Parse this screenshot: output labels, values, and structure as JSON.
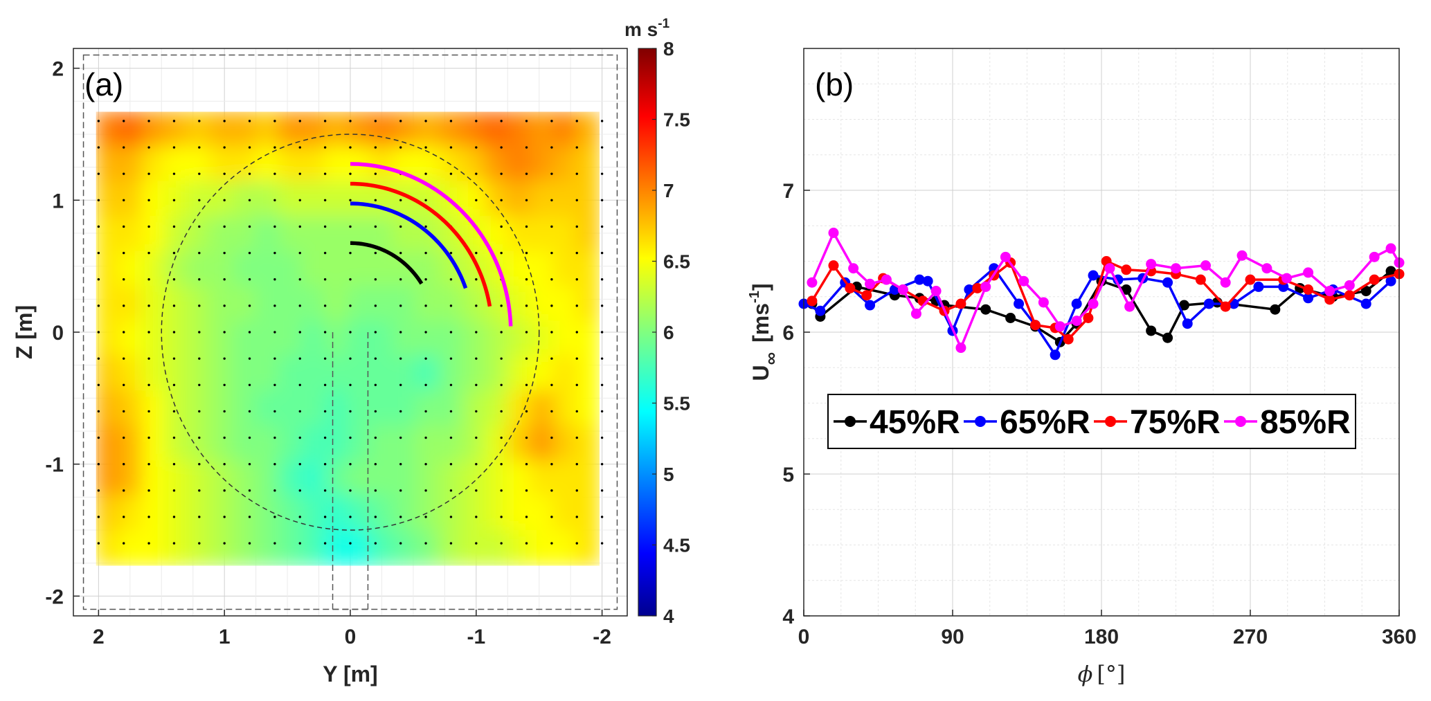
{
  "chart_data": [
    {
      "type": "heatmap",
      "panel_label": "(a)",
      "xlabel": "Y [m]",
      "ylabel": "Z [m]",
      "xlim": [
        2.2,
        -2.2
      ],
      "ylim": [
        -2.15,
        2.15
      ],
      "x_ticks": [
        "2",
        "1",
        "0",
        "-1",
        "-2"
      ],
      "y_ticks": [
        "2",
        "1",
        "0",
        "-1",
        "-2"
      ],
      "grid": true,
      "colorbar": {
        "unit": "m s",
        "unit_exp": "-1",
        "range": [
          4,
          8
        ],
        "ticks": [
          "8",
          "7.5",
          "7",
          "6.5",
          "6",
          "5.5",
          "5",
          "4.5",
          "4"
        ],
        "colormap": "jet"
      },
      "field_extent": {
        "y": [
          2.02,
          -1.98
        ],
        "z": [
          -1.77,
          1.67
        ]
      },
      "field_values": [
        [
          7.0,
          7.1,
          6.9,
          6.8,
          6.7,
          6.8,
          6.8,
          6.7,
          6.9,
          6.9,
          6.8,
          6.9,
          7.0,
          6.9,
          6.8,
          6.9,
          7.0,
          7.1,
          7.0,
          6.9,
          7.0,
          6.8
        ],
        [
          6.8,
          6.8,
          6.6,
          6.5,
          6.5,
          6.6,
          6.6,
          6.5,
          6.6,
          6.6,
          6.5,
          6.5,
          6.6,
          6.5,
          6.5,
          6.6,
          6.7,
          6.9,
          7.0,
          6.9,
          6.8,
          6.7
        ],
        [
          6.7,
          6.7,
          6.5,
          6.4,
          6.3,
          6.3,
          6.2,
          6.2,
          6.3,
          6.3,
          6.3,
          6.3,
          6.3,
          6.3,
          6.3,
          6.4,
          6.5,
          6.7,
          6.8,
          6.7,
          6.7,
          6.7
        ],
        [
          6.6,
          6.6,
          6.5,
          6.3,
          6.2,
          6.1,
          6.1,
          6.0,
          6.1,
          6.1,
          6.1,
          6.1,
          6.1,
          6.2,
          6.2,
          6.3,
          6.4,
          6.5,
          6.6,
          6.6,
          6.6,
          6.7
        ],
        [
          6.6,
          6.5,
          6.4,
          6.2,
          6.1,
          6.1,
          6.0,
          6.0,
          6.0,
          6.1,
          6.1,
          6.1,
          6.1,
          6.1,
          6.1,
          6.2,
          6.3,
          6.4,
          6.5,
          6.5,
          6.6,
          6.6
        ],
        [
          6.6,
          6.6,
          6.4,
          6.3,
          6.2,
          6.1,
          6.1,
          6.0,
          6.0,
          6.0,
          6.1,
          6.0,
          6.0,
          6.0,
          6.1,
          6.1,
          6.2,
          6.3,
          6.4,
          6.5,
          6.5,
          6.6
        ],
        [
          6.6,
          6.5,
          6.4,
          6.3,
          6.2,
          6.1,
          6.0,
          6.0,
          6.0,
          5.9,
          6.0,
          5.9,
          5.9,
          6.0,
          6.0,
          6.0,
          6.1,
          6.2,
          6.3,
          6.4,
          6.5,
          6.5
        ],
        [
          6.7,
          6.6,
          6.4,
          6.3,
          6.2,
          6.1,
          6.0,
          6.0,
          5.9,
          5.9,
          5.9,
          5.9,
          5.9,
          5.9,
          5.8,
          6.0,
          6.1,
          6.2,
          6.4,
          6.5,
          6.6,
          6.5
        ],
        [
          6.8,
          6.7,
          6.5,
          6.3,
          6.2,
          6.1,
          6.0,
          5.9,
          5.9,
          5.9,
          5.8,
          5.9,
          5.9,
          5.9,
          6.0,
          6.0,
          6.2,
          6.3,
          6.6,
          6.8,
          6.6,
          6.5
        ],
        [
          6.9,
          6.8,
          6.5,
          6.3,
          6.2,
          6.1,
          6.0,
          6.0,
          5.9,
          5.8,
          5.8,
          5.9,
          6.0,
          6.0,
          6.1,
          6.1,
          6.2,
          6.4,
          6.7,
          6.9,
          6.7,
          6.6
        ],
        [
          6.9,
          6.8,
          6.5,
          6.4,
          6.3,
          6.2,
          6.1,
          6.0,
          5.8,
          5.7,
          5.9,
          6.0,
          6.0,
          6.0,
          6.1,
          6.2,
          6.3,
          6.4,
          6.5,
          6.6,
          6.6,
          6.6
        ],
        [
          6.7,
          6.6,
          6.5,
          6.4,
          6.3,
          6.2,
          6.1,
          6.0,
          5.9,
          5.8,
          5.7,
          5.8,
          5.9,
          6.0,
          6.1,
          6.2,
          6.3,
          6.4,
          6.5,
          6.5,
          6.6,
          6.6
        ],
        [
          6.6,
          6.5,
          6.5,
          6.4,
          6.3,
          6.2,
          6.1,
          6.0,
          5.9,
          5.8,
          5.6,
          5.6,
          5.8,
          5.9,
          6.0,
          6.2,
          6.3,
          6.3,
          6.4,
          6.5,
          6.5,
          6.6
        ]
      ],
      "measurement_circle_radius": 1.5,
      "arcs": [
        {
          "label": "45%R",
          "color": "#000000",
          "radius": 0.675,
          "phi_start_deg": 0,
          "phi_end_deg": 57
        },
        {
          "label": "65%R",
          "color": "#0000ff",
          "radius": 0.975,
          "phi_start_deg": 0,
          "phi_end_deg": 70
        },
        {
          "label": "75%R",
          "color": "#ff0000",
          "radius": 1.125,
          "phi_start_deg": 0,
          "phi_end_deg": 80
        },
        {
          "label": "85%R",
          "color": "#ff00ff",
          "radius": 1.275,
          "phi_start_deg": 0,
          "phi_end_deg": 88
        }
      ]
    },
    {
      "type": "line",
      "panel_label": "(b)",
      "xlabel": "[°]",
      "xlabel_symbol": "ϕ",
      "ylabel": "U",
      "ylabel_sub": "∞",
      "ylabel_unit": "[ms",
      "ylabel_unit_exp": "-1",
      "ylabel_unit_close": "]",
      "xlim": [
        0,
        360
      ],
      "ylim": [
        4,
        8
      ],
      "x_ticks": [
        "0",
        "90",
        "180",
        "270",
        "360"
      ],
      "y_ticks": [
        "4",
        "5",
        "6",
        "7"
      ],
      "grid": true,
      "legend_position": "middle",
      "series": [
        {
          "name": "45%R",
          "color": "#000000",
          "x": [
            5,
            10,
            32,
            55,
            70,
            80,
            85,
            110,
            125,
            140,
            155,
            165,
            180,
            195,
            210,
            220,
            230,
            250,
            285,
            300,
            320,
            340,
            355
          ],
          "y": [
            6.2,
            6.11,
            6.32,
            6.26,
            6.24,
            6.22,
            6.19,
            6.16,
            6.1,
            6.04,
            5.93,
            6.06,
            6.36,
            6.3,
            6.01,
            5.96,
            6.19,
            6.21,
            6.16,
            6.31,
            6.25,
            6.29,
            6.43
          ]
        },
        {
          "name": "65%R",
          "color": "#0000ff",
          "x": [
            0,
            10,
            25,
            40,
            55,
            70,
            75,
            90,
            100,
            115,
            130,
            140,
            152,
            165,
            175,
            190,
            205,
            220,
            232,
            245,
            260,
            275,
            290,
            305,
            320,
            340,
            355
          ],
          "y": [
            6.2,
            6.15,
            6.35,
            6.19,
            6.3,
            6.37,
            6.36,
            6.01,
            6.3,
            6.45,
            6.2,
            6.05,
            5.84,
            6.2,
            6.4,
            6.37,
            6.38,
            6.35,
            6.06,
            6.2,
            6.2,
            6.32,
            6.32,
            6.24,
            6.3,
            6.2,
            6.36
          ]
        },
        {
          "name": "75%R",
          "color": "#ff0000",
          "x": [
            5,
            18,
            28,
            38,
            48,
            60,
            72,
            85,
            95,
            105,
            115,
            125,
            140,
            152,
            160,
            172,
            183,
            195,
            210,
            225,
            240,
            255,
            270,
            290,
            305,
            318,
            330,
            345,
            360
          ],
          "y": [
            6.22,
            6.47,
            6.31,
            6.26,
            6.38,
            6.3,
            6.22,
            6.15,
            6.2,
            6.31,
            6.4,
            6.49,
            6.05,
            6.03,
            5.95,
            6.1,
            6.5,
            6.44,
            6.43,
            6.41,
            6.37,
            6.18,
            6.37,
            6.37,
            6.3,
            6.23,
            6.26,
            6.37,
            6.41
          ]
        },
        {
          "name": "85%R",
          "color": "#ff00ff",
          "x": [
            5,
            18,
            30,
            40,
            50,
            60,
            68,
            80,
            95,
            110,
            122,
            133,
            145,
            155,
            165,
            175,
            185,
            197,
            210,
            225,
            243,
            255,
            265,
            280,
            292,
            305,
            318,
            330,
            345,
            355,
            360
          ],
          "y": [
            6.35,
            6.7,
            6.45,
            6.34,
            6.37,
            6.3,
            6.13,
            6.29,
            5.89,
            6.32,
            6.53,
            6.36,
            6.21,
            6.04,
            6.08,
            6.2,
            6.45,
            6.18,
            6.48,
            6.45,
            6.47,
            6.35,
            6.54,
            6.45,
            6.38,
            6.42,
            6.29,
            6.33,
            6.53,
            6.59,
            6.49
          ]
        }
      ]
    }
  ]
}
